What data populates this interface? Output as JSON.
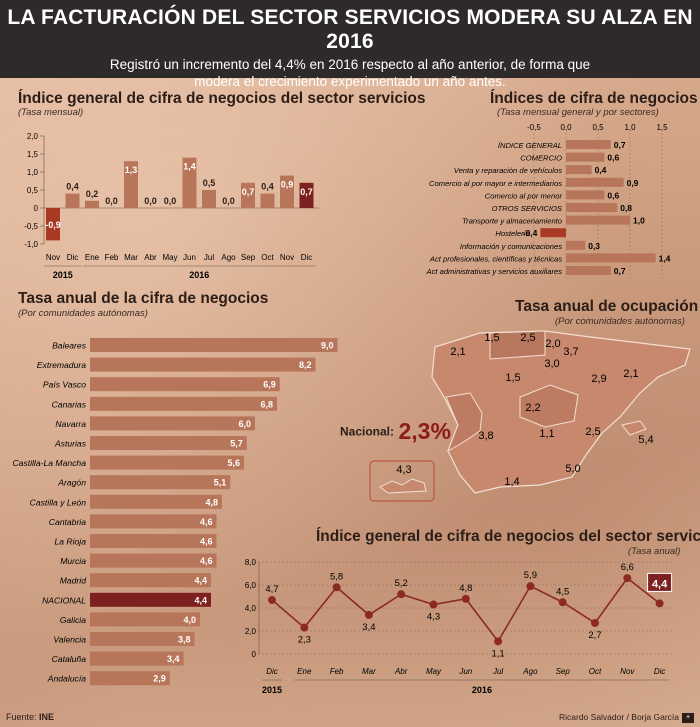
{
  "header": {
    "title": "LA FACTURACIÓN DEL SECTOR SERVICIOS MODERA SU ALZA EN 2016",
    "subtitle_line1": "Registró un incremento del 4,4% en 2016 respecto al año anterior, de forma que",
    "subtitle_line2": "modera el crecimiento experimentado un año antes."
  },
  "colors": {
    "bar": "#b7755a",
    "highlight": "#7d2020",
    "negative": "#a83a24",
    "line": "#8c2a22"
  },
  "chart_data": [
    {
      "id": "monthly",
      "type": "bar",
      "title": "Índice general de cifra de negocios del sector servicios",
      "subtitle": "(Tasa mensual)",
      "ylim": [
        -1.0,
        2.0
      ],
      "yticks": [
        "2,0",
        "1,5",
        "1,0",
        "0,5",
        "0",
        "-0,5",
        "-1,0"
      ],
      "yticks_values": [
        2.0,
        1.5,
        1.0,
        0.5,
        0,
        -0.5,
        -1.0
      ],
      "categories": [
        "Nov",
        "Dic",
        "Ene",
        "Feb",
        "Mar",
        "Abr",
        "May",
        "Jun",
        "Jul",
        "Ago",
        "Sep",
        "Oct",
        "Nov",
        "Dic"
      ],
      "values": [
        -0.9,
        0.4,
        0.2,
        0.0,
        1.3,
        0.0,
        0.0,
        1.4,
        0.5,
        0.0,
        0.7,
        0.4,
        0.9,
        0.7
      ],
      "labels": [
        "-0,9",
        "0,4",
        "0,2",
        "0,0",
        "1,3",
        "0,0",
        "0,0",
        "1,4",
        "0,5",
        "0,0",
        "0,7",
        "0,4",
        "0,9",
        "0,7"
      ],
      "highlight_index": 13,
      "years": [
        {
          "label": "2015",
          "from": 0,
          "to": 1
        },
        {
          "label": "2016",
          "from": 2,
          "to": 13
        }
      ]
    },
    {
      "id": "sectors",
      "type": "bar",
      "orientation": "horizontal",
      "title": "Índices de cifra de negocios",
      "subtitle": "(Tasa mensual general y por sectores)",
      "xlim": [
        -0.5,
        1.5
      ],
      "xticks": [
        "-0,5",
        "0,0",
        "0,5",
        "1,0",
        "1,5"
      ],
      "xticks_values": [
        -0.5,
        0,
        0.5,
        1.0,
        1.5
      ],
      "categories": [
        "ÍNDICE GENERAL",
        "COMERCIO",
        "Venta y reparación de vehículos",
        "Comercio al por mayor e intermediarios",
        "Comercio al por menor",
        "OTROS SERVICIOS",
        "Transporte y almacenamiento",
        "Hostelería",
        "Información y comunicaciones",
        "Act profesionales, científicas y técnicas",
        "Act administrativas y servicios auxiliares"
      ],
      "values": [
        0.7,
        0.6,
        0.4,
        0.9,
        0.6,
        0.8,
        1.0,
        -0.4,
        0.3,
        1.4,
        0.7
      ],
      "labels": [
        "0,7",
        "0,6",
        "0,4",
        "0,9",
        "0,6",
        "0,8",
        "1,0",
        "-0,4",
        "0,3",
        "1,4",
        "0,7"
      ]
    },
    {
      "id": "regions",
      "type": "bar",
      "orientation": "horizontal",
      "title": "Tasa anual de la cifra de negocios",
      "subtitle": "(Por comunidades autónomas)",
      "xlim": [
        0,
        9.5
      ],
      "categories": [
        "Baleares",
        "Extremadura",
        "País Vasco",
        "Canarias",
        "Navarra",
        "Asturias",
        "Castilla-La Mancha",
        "Aragón",
        "Castilla y León",
        "Cantabria",
        "La Rioja",
        "Murcia",
        "Madrid",
        "NACIONAL",
        "Galicia",
        "Valencia",
        "Cataluña",
        "Andalucía"
      ],
      "values": [
        9.0,
        8.2,
        6.9,
        6.8,
        6.0,
        5.7,
        5.6,
        5.1,
        4.8,
        4.6,
        4.6,
        4.6,
        4.4,
        4.4,
        4.0,
        3.8,
        3.4,
        2.9
      ],
      "labels": [
        "9,0",
        "8,2",
        "6,9",
        "6,8",
        "6,0",
        "5,7",
        "5,6",
        "5,1",
        "4,8",
        "4,6",
        "4,6",
        "4,6",
        "4,4",
        "4,4",
        "4,0",
        "3,8",
        "3,4",
        "2,9"
      ],
      "highlight_index": 13
    },
    {
      "id": "employment_map",
      "type": "table",
      "title": "Tasa anual de ocupación",
      "subtitle": "(Por comunidades autónomas)",
      "national_label": "Nacional:",
      "national_value": "2,3%",
      "regions": [
        "Galicia",
        "Asturias",
        "Cantabria",
        "País Vasco",
        "Navarra",
        "La Rioja",
        "Castilla y León",
        "Aragón",
        "Cataluña",
        "Madrid",
        "Castilla-La Mancha",
        "Valencia",
        "Extremadura",
        "Andalucía",
        "Murcia",
        "Baleares",
        "Canarias"
      ],
      "values": [
        2.1,
        1.5,
        2.5,
        2.0,
        3.7,
        3.0,
        1.5,
        2.9,
        2.1,
        2.2,
        1.1,
        2.5,
        3.8,
        1.4,
        5.0,
        5.4,
        4.3
      ],
      "labels": [
        "2,1",
        "1,5",
        "2,5",
        "2,0",
        "3,7",
        "3,0",
        "1,5",
        "2,9",
        "2,1",
        "2,2",
        "1,1",
        "2,5",
        "3,8",
        "1,4",
        "5,0",
        "5,4",
        "4,3"
      ]
    },
    {
      "id": "annual",
      "type": "line",
      "title": "Índice general de cifra de negocios del sector servicios",
      "subtitle": "(Tasa anual)",
      "ylim": [
        0,
        8.0
      ],
      "yticks": [
        "8,0",
        "6,0",
        "4,0",
        "2,0",
        "0"
      ],
      "yticks_values": [
        8.0,
        6.0,
        4.0,
        2.0,
        0
      ],
      "categories": [
        "Dic",
        "Ene",
        "Feb",
        "Mar",
        "Abr",
        "May",
        "Jun",
        "Jul",
        "Ago",
        "Sep",
        "Oct",
        "Nov",
        "Dic"
      ],
      "values": [
        4.7,
        2.3,
        5.8,
        3.4,
        5.2,
        4.3,
        4.8,
        1.1,
        5.9,
        4.5,
        2.7,
        6.6,
        4.4
      ],
      "labels": [
        "4,7",
        "2,3",
        "5,8",
        "3,4",
        "5,2",
        "4,3",
        "4,8",
        "1,1",
        "5,9",
        "4,5",
        "2,7",
        "6,6",
        "4,4"
      ],
      "highlight_index": 12,
      "years": [
        {
          "label": "2015",
          "from": 0,
          "to": 0
        },
        {
          "label": "2016",
          "from": 1,
          "to": 12
        }
      ]
    }
  ],
  "footer": {
    "source_label": "Fuente:",
    "source": "INE",
    "credit": "Ricardo Salvador / Borja García"
  }
}
